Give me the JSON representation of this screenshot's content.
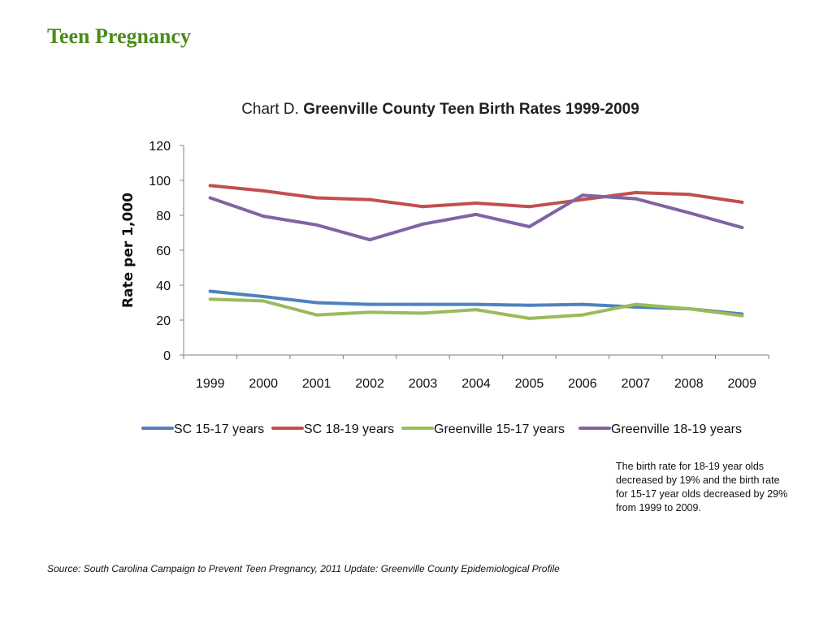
{
  "slide": {
    "title": "Teen Pregnancy",
    "note": "The birth rate for 18-19 year olds decreased by 19% and the birth rate for 15-17 year olds decreased by 29% from 1999 to 2009.",
    "source": "Source:  South Carolina Campaign to Prevent Teen Pregnancy, 2011 Update: Greenville County Epidemiological Profile"
  },
  "chart_data": {
    "type": "line",
    "title_prefix": "Chart D.",
    "title": "Greenville County Teen Birth Rates 1999-2009",
    "xlabel": "",
    "ylabel": "Rate per 1,000",
    "ylim": [
      0,
      120
    ],
    "yticks": [
      0,
      20,
      40,
      60,
      80,
      100,
      120
    ],
    "grid": false,
    "legend_position": "bottom",
    "categories": [
      "1999",
      "2000",
      "2001",
      "2002",
      "2003",
      "2004",
      "2005",
      "2006",
      "2007",
      "2008",
      "2009"
    ],
    "series": [
      {
        "name": "SC 15-17 years",
        "color": "#4f81bd",
        "values": [
          36.5,
          33.5,
          30,
          29,
          29,
          29,
          28.5,
          29,
          27.5,
          26.5,
          23.5
        ]
      },
      {
        "name": "SC 18-19 years",
        "color": "#c0504d",
        "values": [
          97,
          94,
          90,
          89,
          85,
          87,
          85,
          89,
          93,
          92,
          87.5
        ]
      },
      {
        "name": "Greenville 15-17 years",
        "color": "#9bbb59",
        "values": [
          32,
          31,
          23,
          24.5,
          24,
          26,
          21,
          23,
          29,
          26.5,
          22.5
        ]
      },
      {
        "name": "Greenville 18-19 years",
        "color": "#8064a2",
        "values": [
          90,
          79.5,
          74.5,
          66,
          75,
          80.5,
          73.5,
          91.5,
          89.5,
          81.5,
          73
        ]
      }
    ]
  }
}
